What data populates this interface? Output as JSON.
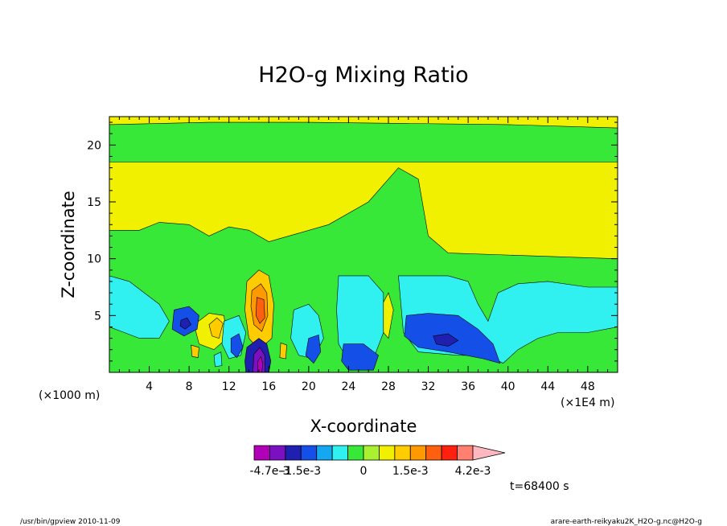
{
  "chart_data": {
    "type": "heatmap",
    "title": "H2O-g Mixing Ratio",
    "xlabel": "X-coordinate",
    "ylabel": "Z-coordinate",
    "x_unit": "(×1E4 m)",
    "y_unit": "(×1000 m)",
    "xlim": [
      0,
      51
    ],
    "ylim": [
      0,
      22.5
    ],
    "x_ticks": [
      4,
      8,
      12,
      16,
      20,
      24,
      28,
      32,
      36,
      40,
      44,
      48
    ],
    "y_ticks": [
      5,
      10,
      15,
      20
    ],
    "colorbar": {
      "colors": [
        "#b000b8",
        "#7a10c0",
        "#1f1fb0",
        "#1450e8",
        "#14a8f0",
        "#30f0f0",
        "#38e838",
        "#a8f030",
        "#f0f000",
        "#ffcc00",
        "#ff9900",
        "#ff6010",
        "#ff2010",
        "#ff8070",
        "#ffb8c0"
      ],
      "tick_labels": [
        "-4.7e-3",
        "-1.5e-3",
        "0",
        "1.5e-3",
        "4.2e-3"
      ],
      "tick_values": [
        -0.0047,
        -0.0015,
        0,
        0.0015,
        0.0042
      ]
    },
    "time_label": "t=68400 s",
    "footer_left": "/usr/bin/gpview   2010-11-09",
    "footer_right": "arare-earth-reikyaku2K_H2O-g.nc@H2O-g",
    "regions": [
      {
        "level": 0.0009,
        "color": "#f0f000",
        "pts": [
          [
            0,
            18.5
          ],
          [
            51,
            18.5
          ],
          [
            51,
            10
          ],
          [
            34,
            10.5
          ],
          [
            32,
            12
          ],
          [
            31,
            17
          ],
          [
            29,
            18
          ],
          [
            26,
            15
          ],
          [
            22,
            13
          ],
          [
            18,
            12
          ],
          [
            16,
            11.5
          ],
          [
            14,
            12.5
          ],
          [
            12,
            12.8
          ],
          [
            10,
            12
          ],
          [
            8,
            13
          ],
          [
            5,
            13.2
          ],
          [
            3,
            12.5
          ],
          [
            0,
            12.5
          ]
        ]
      },
      {
        "level": 0.0009,
        "color": "#f0f000",
        "pts": [
          [
            0,
            22.5
          ],
          [
            51,
            22.5
          ],
          [
            51,
            21.5
          ],
          [
            40,
            21.8
          ],
          [
            20,
            22
          ],
          [
            10,
            22
          ],
          [
            0,
            21.8
          ]
        ]
      },
      {
        "level": 0.0009,
        "color": "#f0f000",
        "pts": [
          [
            28,
            7
          ],
          [
            28.5,
            5.5
          ],
          [
            28,
            3
          ],
          [
            27.5,
            3.5
          ],
          [
            27.4,
            6
          ]
        ]
      },
      {
        "level": 0.0009,
        "color": "#f0f000",
        "pts": [
          [
            8.5,
            4.2
          ],
          [
            10,
            5.2
          ],
          [
            11.5,
            5
          ],
          [
            11.8,
            3
          ],
          [
            10.5,
            2
          ],
          [
            9,
            2.5
          ]
        ]
      },
      {
        "level": 0.0021,
        "color": "#ffcc00",
        "pts": [
          [
            13.8,
            8
          ],
          [
            15,
            9
          ],
          [
            16,
            8.5
          ],
          [
            16.5,
            6
          ],
          [
            16.3,
            3
          ],
          [
            15,
            2
          ],
          [
            14,
            3
          ],
          [
            13.6,
            5.5
          ]
        ]
      },
      {
        "level": 0.0021,
        "color": "#ffcc00",
        "pts": [
          [
            10,
            4.2
          ],
          [
            10.8,
            4.8
          ],
          [
            11.4,
            4.3
          ],
          [
            11,
            3
          ],
          [
            10.3,
            3.2
          ]
        ]
      },
      {
        "level": 0.0028,
        "color": "#ff9900",
        "pts": [
          [
            14.3,
            7.2
          ],
          [
            15.2,
            7.8
          ],
          [
            15.8,
            7
          ],
          [
            15.9,
            5
          ],
          [
            15.3,
            3.6
          ],
          [
            14.5,
            4.2
          ],
          [
            14.2,
            5.8
          ]
        ]
      },
      {
        "level": 0.0036,
        "color": "#ff6010",
        "pts": [
          [
            14.8,
            6.6
          ],
          [
            15.5,
            6.4
          ],
          [
            15.6,
            4.8
          ],
          [
            15.1,
            4.3
          ],
          [
            14.7,
            5
          ]
        ]
      },
      {
        "level": 0.0002,
        "color": "#30f0f0",
        "pts": [
          [
            0,
            8.5
          ],
          [
            2,
            8
          ],
          [
            3.5,
            7
          ],
          [
            5,
            6
          ],
          [
            6,
            4.5
          ],
          [
            5,
            3
          ],
          [
            3,
            3
          ],
          [
            1.5,
            3.5
          ],
          [
            0,
            4
          ]
        ]
      },
      {
        "level": 0.0002,
        "color": "#30f0f0",
        "pts": [
          [
            23,
            8.5
          ],
          [
            26,
            8.5
          ],
          [
            27.5,
            7
          ],
          [
            27.5,
            3.5
          ],
          [
            26.5,
            1.2
          ],
          [
            24,
            1
          ],
          [
            23,
            2.5
          ],
          [
            22.8,
            5.5
          ]
        ]
      },
      {
        "level": 0.0002,
        "color": "#30f0f0",
        "pts": [
          [
            29,
            8.5
          ],
          [
            34,
            8.5
          ],
          [
            36,
            8
          ],
          [
            37,
            6
          ],
          [
            38,
            4.5
          ],
          [
            39,
            7
          ],
          [
            41,
            7.8
          ],
          [
            44,
            8
          ],
          [
            48,
            7.5
          ],
          [
            51,
            7.5
          ],
          [
            51,
            4
          ],
          [
            48,
            3.5
          ],
          [
            45,
            3.5
          ],
          [
            43,
            3
          ],
          [
            41,
            2
          ],
          [
            39.5,
            0.8
          ],
          [
            38,
            1.5
          ],
          [
            35,
            1.5
          ],
          [
            31,
            1.8
          ],
          [
            29.5,
            3.5
          ]
        ]
      },
      {
        "level": 0.0002,
        "color": "#30f0f0",
        "pts": [
          [
            18.5,
            5.5
          ],
          [
            20,
            6
          ],
          [
            21,
            5
          ],
          [
            21.5,
            3
          ],
          [
            20.5,
            1.2
          ],
          [
            19,
            1.5
          ],
          [
            18.2,
            3
          ]
        ]
      },
      {
        "level": 0.0002,
        "color": "#30f0f0",
        "pts": [
          [
            11.5,
            4.5
          ],
          [
            13,
            5
          ],
          [
            13.7,
            3.5
          ],
          [
            13.2,
            1.5
          ],
          [
            12,
            1.2
          ],
          [
            11.3,
            2.5
          ]
        ]
      },
      {
        "level": -0.0009,
        "color": "#1450e8",
        "pts": [
          [
            6.5,
            5.5
          ],
          [
            8,
            5.8
          ],
          [
            9,
            5
          ],
          [
            8.8,
            3.8
          ],
          [
            7.5,
            3.2
          ],
          [
            6.3,
            3.8
          ]
        ]
      },
      {
        "level": -0.0009,
        "color": "#1450e8",
        "pts": [
          [
            23.5,
            2.5
          ],
          [
            25.5,
            2.5
          ],
          [
            27,
            1.5
          ],
          [
            26.5,
            0.2
          ],
          [
            24,
            0.2
          ],
          [
            23.3,
            1
          ]
        ]
      },
      {
        "level": -0.0009,
        "color": "#1450e8",
        "pts": [
          [
            29.8,
            5
          ],
          [
            32,
            5.2
          ],
          [
            35,
            5
          ],
          [
            37,
            3.8
          ],
          [
            38.5,
            2.5
          ],
          [
            39.2,
            0.8
          ],
          [
            37.5,
            1.2
          ],
          [
            34,
            1.8
          ],
          [
            31,
            2.2
          ],
          [
            29.6,
            3.2
          ]
        ]
      },
      {
        "level": -0.0009,
        "color": "#1450e8",
        "pts": [
          [
            20,
            3
          ],
          [
            21,
            3.3
          ],
          [
            21.2,
            1.8
          ],
          [
            20.5,
            0.8
          ],
          [
            19.7,
            1.5
          ]
        ]
      },
      {
        "level": -0.0009,
        "color": "#1450e8",
        "pts": [
          [
            12.2,
            3
          ],
          [
            13,
            3.4
          ],
          [
            13.4,
            2.2
          ],
          [
            12.8,
            1.3
          ],
          [
            12.2,
            1.8
          ]
        ]
      },
      {
        "level": -0.0015,
        "color": "#1f1fb0",
        "pts": [
          [
            32.5,
            3.2
          ],
          [
            34,
            3.4
          ],
          [
            35,
            2.8
          ],
          [
            34,
            2.3
          ],
          [
            32.8,
            2.5
          ]
        ]
      },
      {
        "level": -0.0015,
        "color": "#1f1fb0",
        "pts": [
          [
            7.2,
            4.6
          ],
          [
            7.8,
            4.8
          ],
          [
            8.2,
            4.2
          ],
          [
            7.6,
            3.8
          ],
          [
            7.1,
            4.1
          ]
        ]
      },
      {
        "level": -0.0022,
        "color": "#1f1fb0",
        "pts": [
          [
            13.8,
            2.2
          ],
          [
            15,
            3
          ],
          [
            15.8,
            2.5
          ],
          [
            16.2,
            1
          ],
          [
            16,
            0
          ],
          [
            13.7,
            0
          ],
          [
            13.6,
            1
          ]
        ]
      },
      {
        "level": -0.0033,
        "color": "#7a10c0",
        "pts": [
          [
            14.5,
            1.6
          ],
          [
            15.1,
            2.2
          ],
          [
            15.6,
            1.5
          ],
          [
            15.6,
            0
          ],
          [
            14.4,
            0
          ]
        ]
      },
      {
        "level": -0.0045,
        "color": "#b000b8",
        "pts": [
          [
            14.9,
            1
          ],
          [
            15.2,
            1.4
          ],
          [
            15.4,
            0.8
          ],
          [
            15.3,
            0
          ],
          [
            14.9,
            0
          ]
        ]
      },
      {
        "level": 0.0021,
        "color": "#ffcc00",
        "pts": [
          [
            8.2,
            2.4
          ],
          [
            9,
            2.2
          ],
          [
            8.9,
            1.3
          ],
          [
            8.3,
            1.4
          ]
        ]
      },
      {
        "level": 0.0021,
        "color": "#ffcc00",
        "pts": [
          [
            17.2,
            2.6
          ],
          [
            17.8,
            2.4
          ],
          [
            17.7,
            1.2
          ],
          [
            17.1,
            1.3
          ]
        ]
      },
      {
        "level": 0.0002,
        "color": "#30f0f0",
        "pts": [
          [
            10.5,
            1.5
          ],
          [
            11.2,
            1.8
          ],
          [
            11.3,
            0.6
          ],
          [
            10.6,
            0.5
          ]
        ]
      }
    ],
    "base_level": 0.0005
  }
}
